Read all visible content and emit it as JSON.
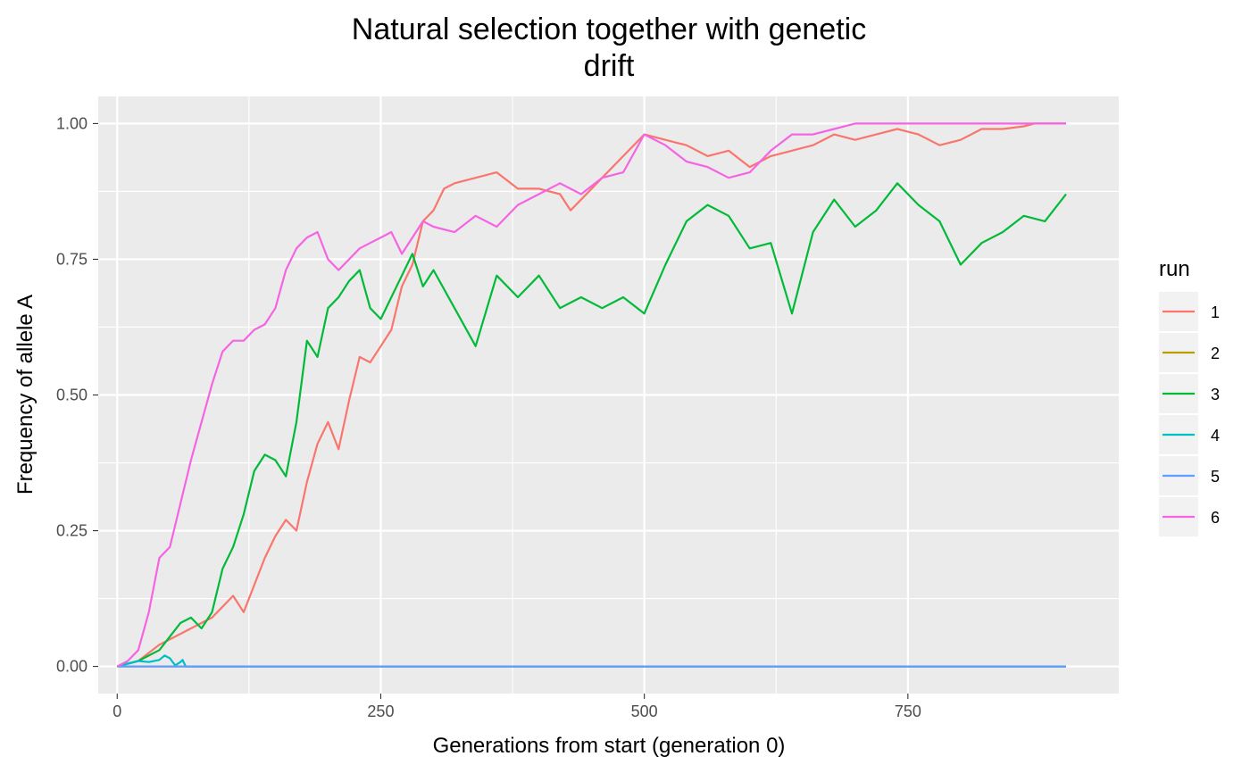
{
  "chart_data": {
    "type": "line",
    "title_lines": [
      "Natural selection together with genetic",
      "drift"
    ],
    "xlabel": "Generations from start (generation 0)",
    "ylabel": "Frequency of allele A",
    "xlim": [
      -18,
      950
    ],
    "ylim": [
      -0.05,
      1.05
    ],
    "x_ticks": [
      0,
      250,
      500,
      750
    ],
    "x_tick_labels": [
      "0",
      "250",
      "500",
      "750"
    ],
    "y_ticks": [
      0,
      0.25,
      0.5,
      0.75,
      1.0
    ],
    "y_tick_labels": [
      "0.00",
      "0.25",
      "0.50",
      "0.75",
      "1.00"
    ],
    "grid": true,
    "legend": {
      "title": "run",
      "position": "right"
    },
    "series": [
      {
        "name": "1",
        "color": "#F8766D",
        "x": [
          0,
          20,
          40,
          60,
          80,
          90,
          100,
          110,
          120,
          130,
          140,
          150,
          160,
          170,
          180,
          190,
          200,
          210,
          220,
          230,
          240,
          250,
          260,
          270,
          280,
          290,
          300,
          310,
          320,
          340,
          360,
          380,
          400,
          420,
          430,
          440,
          460,
          480,
          500,
          520,
          540,
          560,
          580,
          600,
          620,
          640,
          660,
          680,
          700,
          720,
          740,
          760,
          780,
          800,
          820,
          840,
          860,
          870,
          900
        ],
        "y": [
          0,
          0.01,
          0.04,
          0.06,
          0.08,
          0.09,
          0.11,
          0.13,
          0.1,
          0.15,
          0.2,
          0.24,
          0.27,
          0.25,
          0.34,
          0.41,
          0.45,
          0.4,
          0.49,
          0.57,
          0.56,
          0.59,
          0.62,
          0.7,
          0.74,
          0.82,
          0.84,
          0.88,
          0.89,
          0.9,
          0.91,
          0.88,
          0.88,
          0.87,
          0.84,
          0.86,
          0.9,
          0.94,
          0.98,
          0.97,
          0.96,
          0.94,
          0.95,
          0.92,
          0.94,
          0.95,
          0.96,
          0.98,
          0.97,
          0.98,
          0.99,
          0.98,
          0.96,
          0.97,
          0.99,
          0.99,
          0.995,
          1.0,
          1.0
        ]
      },
      {
        "name": "2",
        "color": "#B79F00",
        "x": [
          0,
          900
        ],
        "y": [
          0,
          0
        ]
      },
      {
        "name": "3",
        "color": "#00BA38",
        "x": [
          0,
          20,
          40,
          60,
          70,
          80,
          90,
          100,
          110,
          120,
          130,
          140,
          150,
          160,
          170,
          180,
          190,
          200,
          210,
          220,
          230,
          240,
          250,
          260,
          270,
          280,
          290,
          300,
          320,
          340,
          360,
          380,
          400,
          420,
          440,
          460,
          480,
          500,
          520,
          540,
          560,
          580,
          600,
          620,
          640,
          660,
          680,
          700,
          720,
          740,
          760,
          780,
          800,
          820,
          840,
          860,
          880,
          900
        ],
        "y": [
          0,
          0.01,
          0.03,
          0.08,
          0.09,
          0.07,
          0.1,
          0.18,
          0.22,
          0.28,
          0.36,
          0.39,
          0.38,
          0.35,
          0.45,
          0.6,
          0.57,
          0.66,
          0.68,
          0.71,
          0.73,
          0.66,
          0.64,
          0.68,
          0.72,
          0.76,
          0.7,
          0.73,
          0.66,
          0.59,
          0.72,
          0.68,
          0.72,
          0.66,
          0.68,
          0.66,
          0.68,
          0.65,
          0.74,
          0.82,
          0.85,
          0.83,
          0.77,
          0.78,
          0.65,
          0.8,
          0.86,
          0.81,
          0.84,
          0.89,
          0.85,
          0.82,
          0.74,
          0.78,
          0.8,
          0.83,
          0.82,
          0.87
        ]
      },
      {
        "name": "4",
        "color": "#00BFC4",
        "x": [
          0,
          10,
          20,
          30,
          40,
          45,
          50,
          55,
          60,
          62,
          65,
          900
        ],
        "y": [
          0,
          0.005,
          0.01,
          0.008,
          0.012,
          0.02,
          0.015,
          0.002,
          0.008,
          0.012,
          0,
          0
        ]
      },
      {
        "name": "5",
        "color": "#619CFF",
        "x": [
          0,
          900
        ],
        "y": [
          0,
          0
        ]
      },
      {
        "name": "6",
        "color": "#F564E3",
        "x": [
          0,
          10,
          20,
          30,
          40,
          50,
          60,
          65,
          70,
          80,
          90,
          100,
          110,
          120,
          130,
          140,
          150,
          160,
          170,
          180,
          190,
          200,
          210,
          220,
          230,
          240,
          250,
          260,
          270,
          280,
          290,
          300,
          320,
          340,
          360,
          380,
          400,
          420,
          440,
          460,
          480,
          500,
          520,
          540,
          560,
          580,
          600,
          620,
          640,
          660,
          680,
          700,
          720,
          740,
          760,
          800,
          900
        ],
        "y": [
          0,
          0.01,
          0.03,
          0.1,
          0.2,
          0.22,
          0.3,
          0.34,
          0.38,
          0.45,
          0.52,
          0.58,
          0.6,
          0.6,
          0.62,
          0.63,
          0.66,
          0.73,
          0.77,
          0.79,
          0.8,
          0.75,
          0.73,
          0.75,
          0.77,
          0.78,
          0.79,
          0.8,
          0.76,
          0.79,
          0.82,
          0.81,
          0.8,
          0.83,
          0.81,
          0.85,
          0.87,
          0.89,
          0.87,
          0.9,
          0.91,
          0.98,
          0.96,
          0.93,
          0.92,
          0.9,
          0.91,
          0.95,
          0.98,
          0.98,
          0.99,
          1.0,
          1.0,
          1.0,
          1.0,
          1.0,
          1.0
        ]
      }
    ]
  }
}
